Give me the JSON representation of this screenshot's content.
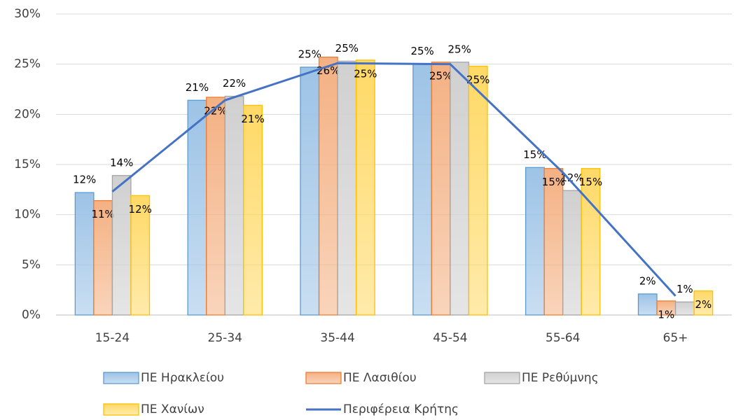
{
  "chart_data": {
    "type": "bar",
    "categories": [
      "15-24",
      "25-34",
      "35-44",
      "45-54",
      "55-64",
      "65+"
    ],
    "series": [
      {
        "name": "ΠΕ Ηρακλείου",
        "type": "bar",
        "color": "#9dc3e6",
        "border": "#5b9bd5",
        "values": [
          12.2,
          21.4,
          24.7,
          25.0,
          14.7,
          2.1
        ],
        "value_labels": [
          "12%",
          "21%",
          "25%",
          "25%",
          "15%",
          "2%"
        ]
      },
      {
        "name": "ΠΕ Λασιθίου",
        "type": "bar",
        "color": "#f4b183",
        "border": "#ed7d31",
        "values": [
          11.4,
          21.7,
          25.7,
          25.2,
          14.6,
          1.4
        ],
        "value_labels": [
          "11%",
          "22%",
          "26%",
          "25%",
          "15%",
          "1%"
        ]
      },
      {
        "name": "ΠΕ Ρεθύμνης",
        "type": "bar",
        "color": "#d0d0d0",
        "border": "#a5a5a5",
        "values": [
          13.9,
          21.8,
          25.3,
          25.2,
          12.4,
          1.3
        ],
        "value_labels": [
          "14%",
          "22%",
          "25%",
          "25%",
          "12%",
          "1%"
        ]
      },
      {
        "name": "ΠΕ Χανίων",
        "type": "bar",
        "color": "#ffd966",
        "border": "#ffc000",
        "values": [
          11.9,
          20.9,
          25.4,
          24.8,
          14.6,
          2.4
        ],
        "value_labels": [
          "12%",
          "21%",
          "25%",
          "25%",
          "15%",
          "2%"
        ]
      },
      {
        "name": "Περιφέρεια Κρήτης",
        "type": "line",
        "color": "#4472c4",
        "values": [
          12.3,
          21.4,
          25.1,
          25.0,
          14.2,
          1.9
        ]
      }
    ],
    "ylim": [
      0,
      30
    ],
    "yticks": [
      {
        "value": 0,
        "label": "0%"
      },
      {
        "value": 5,
        "label": "5%"
      },
      {
        "value": 10,
        "label": "10%"
      },
      {
        "value": 15,
        "label": "15%"
      },
      {
        "value": 20,
        "label": "20%"
      },
      {
        "value": 25,
        "label": "25%"
      },
      {
        "value": 30,
        "label": "30%"
      }
    ],
    "grid": true,
    "legend": "bottom"
  }
}
